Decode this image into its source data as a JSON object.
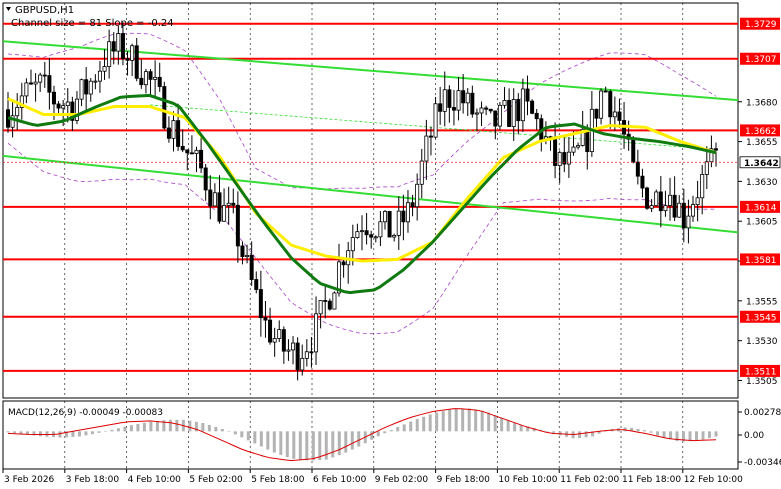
{
  "header": {
    "symbol_timeframe": "GBPUSD,H1",
    "channel_info": "Channel size = 81 Slope = -0.24"
  },
  "macd": {
    "label": "MACD(12,26,9) -0.00049 -0.00083",
    "scale_labels": [
      "0.00278",
      "0.00",
      "-0.00346"
    ]
  },
  "x_axis": {
    "labels": [
      "3 Feb 2026",
      "3 Feb 18:00",
      "4 Feb 10:00",
      "5 Feb 02:00",
      "5 Feb 18:00",
      "6 Feb 10:00",
      "9 Feb 02:00",
      "9 Feb 18:00",
      "10 Feb 10:00",
      "11 Feb 02:00",
      "11 Feb 18:00",
      "12 Feb 10:00"
    ]
  },
  "colors": {
    "level_line": "#ff0000",
    "channel_line": "#33dd33",
    "ma_fast": "#ffee00",
    "ma_slow": "#0f7a0f",
    "envelope": "#aa44cc",
    "candle": "#000000",
    "macd_hist": "#b3b3b3",
    "macd_signal": "#dd0000",
    "price_tag": "#ee2222"
  },
  "chart_data": {
    "type": "candlestick",
    "symbol": "GBPUSD",
    "timeframe": "H1",
    "ylim": [
      1.3494,
      1.3742
    ],
    "y_ticks": [
      1.3505,
      1.353,
      1.3555,
      1.358,
      1.3605,
      1.363,
      1.3655,
      1.368
    ],
    "tick_labels": [
      "1.3505",
      "1.3530",
      "1.3555",
      "1.3605",
      "1.3630",
      "1.3655",
      "1.3680"
    ],
    "levels": [
      1.3729,
      1.3707,
      1.3662,
      1.3614,
      1.3581,
      1.3545,
      1.3511
    ],
    "level_labels": [
      "1.3729",
      "1.3707",
      "1.3662",
      "1.3614",
      "1.3581",
      "1.3545",
      "1.3511"
    ],
    "current_price": 1.3642,
    "current_price_label": "1.3642",
    "channel_upper": [
      1.3718,
      1.3681
    ],
    "channel_lower": [
      1.3646,
      1.3598
    ],
    "close_path": [
      1.3675,
      1.3684,
      1.369,
      1.368,
      1.3678,
      1.369,
      1.3708,
      1.3714,
      1.3704,
      1.369,
      1.3668,
      1.365,
      1.3637,
      1.3615,
      1.3605,
      1.357,
      1.354,
      1.3525,
      1.3522,
      1.3534,
      1.356,
      1.359,
      1.3605,
      1.3602,
      1.3598,
      1.3612,
      1.365,
      1.3682,
      1.3684,
      1.3672,
      1.3665,
      1.3672,
      1.3678,
      1.3665,
      1.3642,
      1.364,
      1.3658,
      1.369,
      1.3668,
      1.363,
      1.3618,
      1.3626,
      1.3608,
      1.3628,
      1.3645
    ],
    "ma_slow_path": [
      1.367,
      1.3665,
      1.3668,
      1.3676,
      1.3683,
      1.3684,
      1.3678,
      1.3655,
      1.363,
      1.3605,
      1.3582,
      1.3566,
      1.356,
      1.3562,
      1.3575,
      1.3592,
      1.3612,
      1.3632,
      1.365,
      1.3664,
      1.3666,
      1.366,
      1.3657,
      1.3655,
      1.3652,
      1.3648
    ],
    "ma_fast_path": [
      1.3682,
      1.3672,
      1.3672,
      1.3677,
      1.3677,
      1.367,
      1.3645,
      1.361,
      1.359,
      1.3583,
      1.358,
      1.3581,
      1.3592,
      1.362,
      1.3645,
      1.3655,
      1.366,
      1.3665,
      1.3664,
      1.3655,
      1.3648
    ],
    "macd_ylim": [
      -0.0036,
      0.0029
    ],
    "macd_ticks": [
      0.00278,
      0.0,
      -0.00346
    ],
    "macd_histogram": [
      -0.0001,
      -0.0003,
      -0.0005,
      -0.0006,
      -0.0005,
      -0.0002,
      0.0002,
      0.0006,
      0.0009,
      0.0011,
      0.0011,
      0.0008,
      0.0003,
      -0.0004,
      -0.0012,
      -0.002,
      -0.0026,
      -0.0028,
      -0.0027,
      -0.0021,
      -0.0013,
      -0.0004,
      0.0004,
      0.0011,
      0.0017,
      0.0021,
      0.0022,
      0.0019,
      0.0012,
      0.0006,
      0.0002,
      -0.0003,
      -0.0007,
      -0.0005,
      0.0002,
      0.0004,
      0.0001,
      -0.0006,
      -0.001,
      -0.0009,
      -0.0005
    ],
    "macd_signal_path": [
      -0.0002,
      -0.0003,
      -0.0003,
      0.0001,
      0.0005,
      0.0009,
      0.001,
      0.0008,
      0.0002,
      -0.0008,
      -0.0018,
      -0.0025,
      -0.0028,
      -0.0026,
      -0.0018,
      -0.0007,
      0.0004,
      0.0013,
      0.0019,
      0.0022,
      0.002,
      0.0012,
      0.0004,
      -0.0002,
      -0.0003,
      0.0,
      0.0002,
      -0.0002,
      -0.0007,
      -0.0009,
      -0.0008
    ]
  }
}
